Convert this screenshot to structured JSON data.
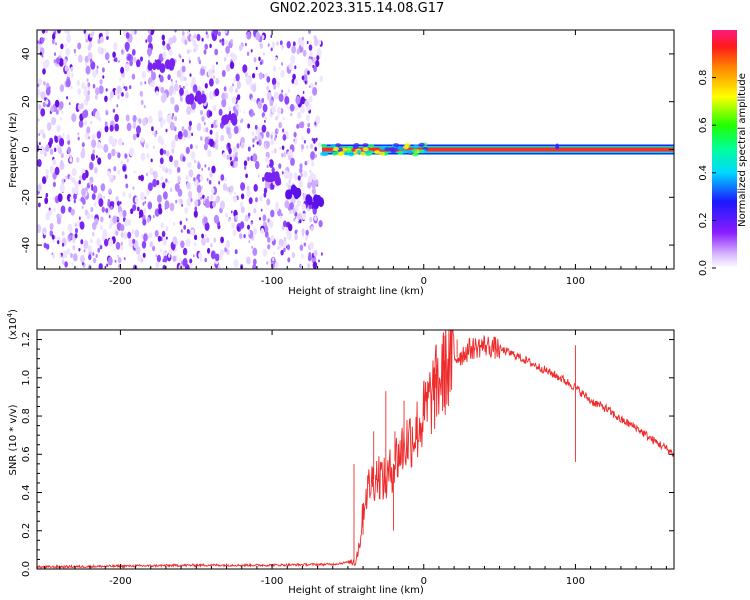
{
  "title": "GN02.2023.315.14.08.G17",
  "colors": {
    "snr_line": "#ee2a2a",
    "axis": "#000000"
  },
  "chart_data": [
    {
      "type": "heatmap",
      "xlabel": "Height of straight line (km)",
      "ylabel": "Frequency (Hz)",
      "xlim": [
        -255,
        165
      ],
      "ylim": [
        -50,
        50
      ],
      "x_ticks": [
        -200,
        -100,
        0,
        100
      ],
      "x_tick_labels": [
        "-200",
        "-100",
        "0",
        "100"
      ],
      "y_ticks": [
        -40,
        -20,
        0,
        20,
        40
      ],
      "y_tick_labels": [
        "-40",
        "-20",
        "0",
        "20",
        "40"
      ],
      "noise_region_x": [
        -255,
        -67
      ],
      "signal_line": {
        "x_start": -67,
        "x_end": 165,
        "frequency": 0,
        "amplitude": 0.95
      },
      "ionospheric_trace": [
        {
          "x": -170,
          "y": 35
        },
        {
          "x": -150,
          "y": 22
        },
        {
          "x": -130,
          "y": 12
        },
        {
          "x": -100,
          "y": -12
        },
        {
          "x": -85,
          "y": -18
        },
        {
          "x": -72,
          "y": -22
        }
      ],
      "colorbar": {
        "label": "Normalized spectral amplitude",
        "range": [
          0,
          1
        ],
        "ticks": [
          0.0,
          0.2,
          0.4,
          0.6,
          0.8
        ],
        "tick_labels": [
          "0.0",
          "0.2",
          "0.4",
          "0.6",
          "0.8"
        ]
      }
    },
    {
      "type": "line",
      "xlabel": "Height of straight line (km)",
      "ylabel": "SNR (10 * v/v)",
      "scale_note": "(x10",
      "scale_exp": "4",
      "scale_close": ")",
      "xlim": [
        -255,
        165
      ],
      "ylim": [
        0,
        1.25
      ],
      "x_ticks": [
        -200,
        -100,
        0,
        100
      ],
      "x_tick_labels": [
        "-200",
        "-100",
        "0",
        "100"
      ],
      "y_ticks": [
        0.0,
        0.2,
        0.4,
        0.6,
        0.8,
        1.0,
        1.2
      ],
      "y_tick_labels": [
        "0.0",
        "0.2",
        "0.4",
        "0.6",
        "0.8",
        "1.0",
        "1.2"
      ],
      "series": [
        {
          "x": [
            -255,
            -200,
            -150,
            -100,
            -60,
            -45,
            -42,
            -40,
            -38,
            -35,
            -30,
            -25,
            -20,
            -15,
            -10,
            -5,
            0,
            5,
            10,
            15,
            20,
            25,
            30,
            40,
            50,
            60,
            70,
            80,
            90,
            100,
            110,
            120,
            130,
            140,
            150,
            160,
            165
          ],
          "y": [
            0.01,
            0.015,
            0.02,
            0.02,
            0.025,
            0.04,
            0.15,
            0.3,
            0.4,
            0.45,
            0.5,
            0.45,
            0.55,
            0.62,
            0.68,
            0.72,
            0.8,
            0.9,
            0.98,
            1.05,
            1.1,
            1.12,
            1.15,
            1.17,
            1.15,
            1.12,
            1.08,
            1.04,
            1.0,
            0.95,
            0.88,
            0.84,
            0.78,
            0.74,
            0.68,
            0.63,
            0.6
          ],
          "spikes": [
            {
              "x": -46,
              "y": 0.55
            },
            {
              "x": -33,
              "y": 0.72
            },
            {
              "x": -25,
              "y": 0.93
            },
            {
              "x": -19,
              "y": 0.72
            },
            {
              "x": -13,
              "y": 0.88
            },
            {
              "x": 0,
              "y": 0.98
            },
            {
              "x": 8,
              "y": 1.02
            },
            {
              "x": 14,
              "y": 1.22
            },
            {
              "x": 22,
              "y": 1.2
            },
            {
              "x": 100,
              "y": 1.17
            }
          ],
          "dips": [
            {
              "x": 100,
              "y": 0.56
            },
            {
              "x": -40,
              "y": 0.18
            },
            {
              "x": -20,
              "y": 0.2
            }
          ]
        }
      ]
    }
  ]
}
